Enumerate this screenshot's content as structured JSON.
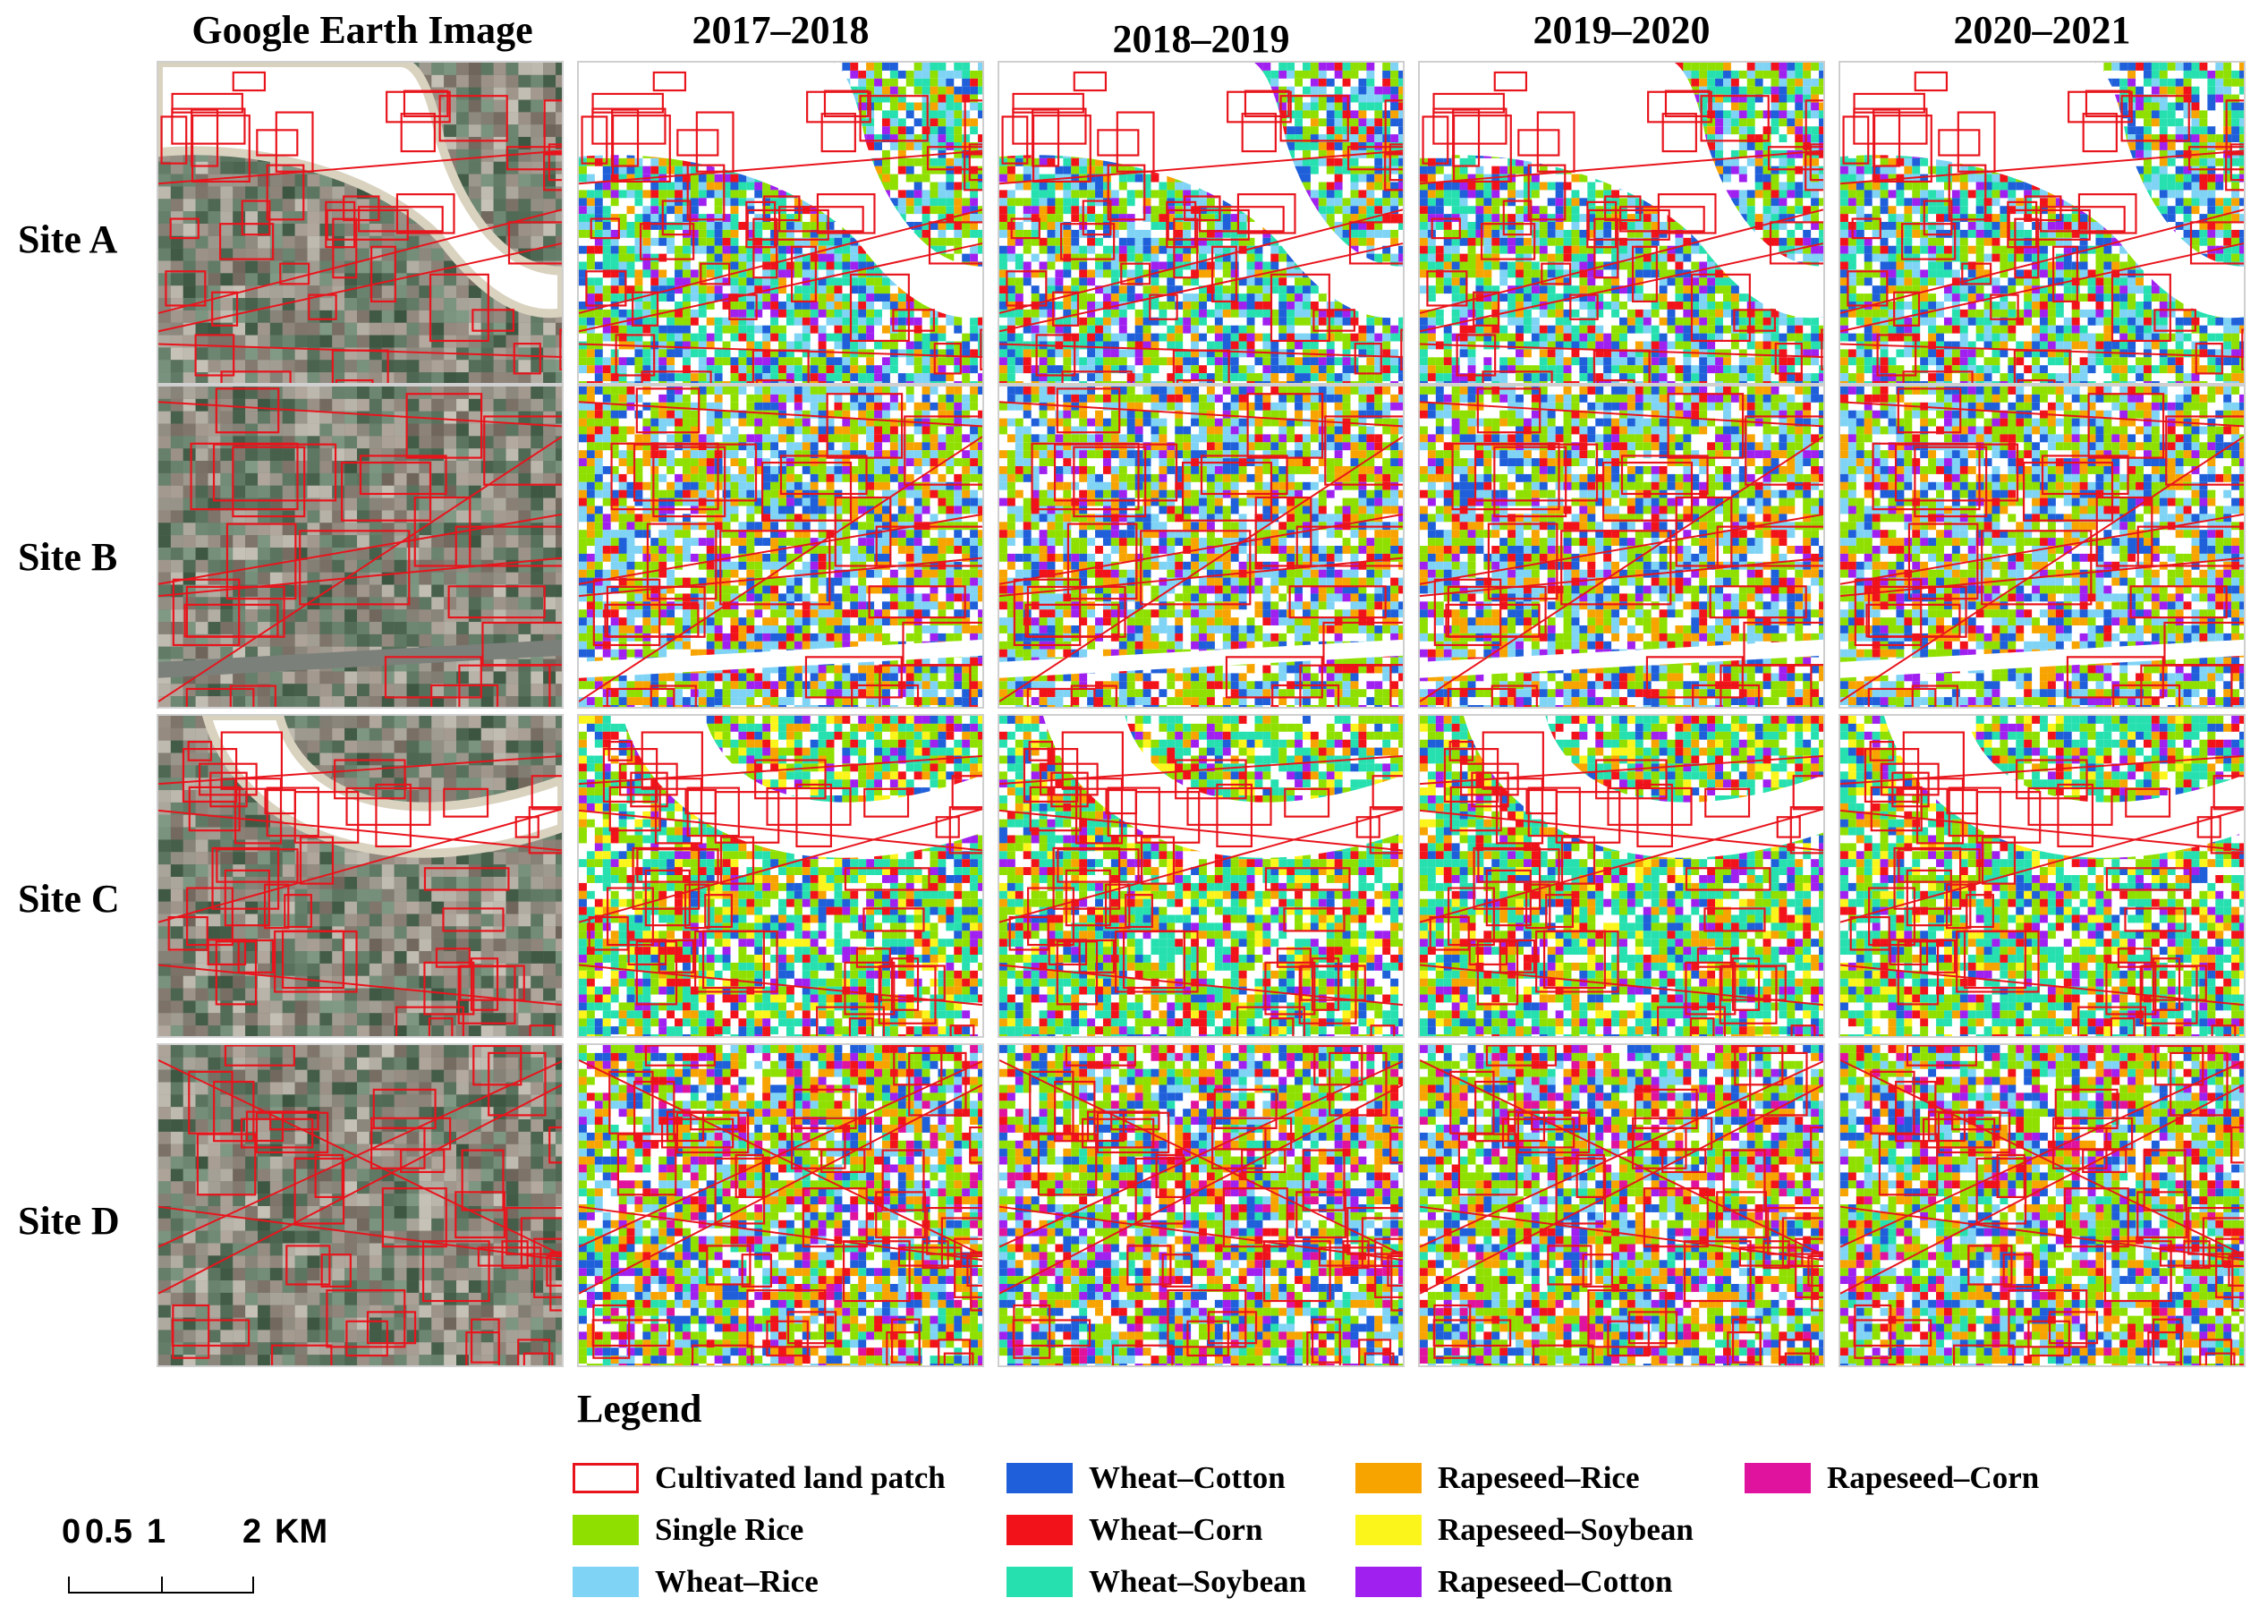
{
  "columns": [
    {
      "key": "google",
      "label": "Google Earth Image"
    },
    {
      "key": "y1718",
      "label": "2017–2018"
    },
    {
      "key": "y1819",
      "label": "2018–2019"
    },
    {
      "key": "y1920",
      "label": "2019–2020"
    },
    {
      "key": "y2021",
      "label": "2020–2021"
    }
  ],
  "rows": [
    {
      "key": "A",
      "label": "Site A"
    },
    {
      "key": "B",
      "label": "Site B"
    },
    {
      "key": "C",
      "label": "Site C"
    },
    {
      "key": "D",
      "label": "Site D"
    }
  ],
  "legend": {
    "title": "Legend",
    "items": [
      {
        "label": "Cultivated land patch",
        "color": "#e8141c",
        "style": "outline"
      },
      {
        "label": "Single Rice",
        "color": "#8fe000",
        "style": "fill"
      },
      {
        "label": "Wheat–Rice",
        "color": "#7fd3f5",
        "style": "fill"
      },
      {
        "label": "Wheat–Cotton",
        "color": "#1f5fd9",
        "style": "fill"
      },
      {
        "label": "Wheat–Corn",
        "color": "#f2131a",
        "style": "fill"
      },
      {
        "label": "Wheat–Soybean",
        "color": "#27e0b0",
        "style": "fill"
      },
      {
        "label": "Rapeseed–Rice",
        "color": "#f7a400",
        "style": "fill"
      },
      {
        "label": "Rapeseed–Soybean",
        "color": "#fbf51b",
        "style": "fill"
      },
      {
        "label": "Rapeseed–Cotton",
        "color": "#a020f0",
        "style": "fill"
      },
      {
        "label": "Rapeseed–Corn",
        "color": "#e0139e",
        "style": "fill"
      }
    ]
  },
  "scalebar": {
    "ticks": [
      "0",
      "0.5",
      "1",
      "2"
    ],
    "unit": "KM"
  }
}
